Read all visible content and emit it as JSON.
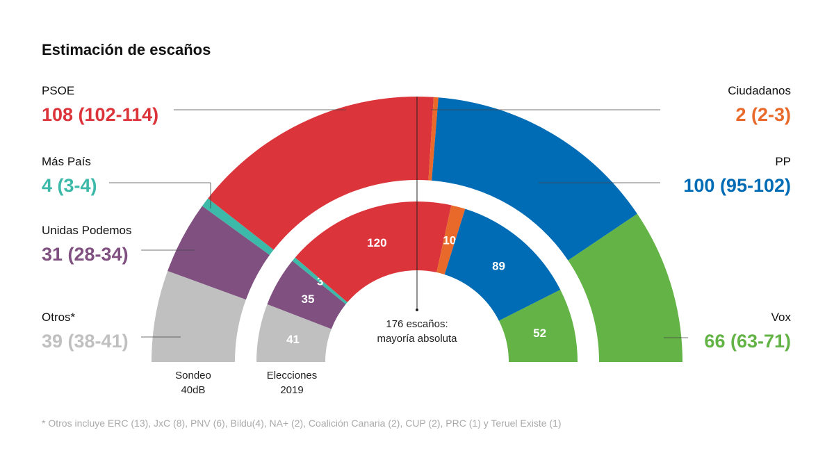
{
  "chart_data": {
    "type": "pie",
    "subtype": "parliament-hemicycle",
    "title": "Estimación de escaños",
    "majority_label": [
      "176 escaños:",
      "mayoría absoluta"
    ],
    "majority_seats": 176,
    "total_seats": 350,
    "rings": [
      {
        "name": "Sondeo 40dB",
        "label_lines": [
          "Sondeo",
          "40dB"
        ],
        "ring": "outer"
      },
      {
        "name": "Elecciones 2019",
        "label_lines": [
          "Elecciones",
          "2019"
        ],
        "ring": "inner"
      }
    ],
    "parties": [
      {
        "name": "Otros*",
        "color": "#c0c0c0",
        "sondeo": 39,
        "range": "38-41",
        "label": "39 (38-41)",
        "elecciones_2019": 41
      },
      {
        "name": "Unidas Podemos",
        "color": "#7f5080",
        "sondeo": 31,
        "range": "28-34",
        "label": "31 (28-34)",
        "elecciones_2019": 35
      },
      {
        "name": "Más País",
        "color": "#3cb9a9",
        "sondeo": 4,
        "range": "3-4",
        "label": "4 (3-4)",
        "elecciones_2019": 3
      },
      {
        "name": "PSOE",
        "color": "#dc343b",
        "sondeo": 108,
        "range": "102-114",
        "label": "108 (102-114)",
        "elecciones_2019": 120
      },
      {
        "name": "Ciudadanos",
        "color": "#e8692a",
        "sondeo": 2,
        "range": "2-3",
        "label": "2 (2-3)",
        "elecciones_2019": 10
      },
      {
        "name": "PP",
        "color": "#006cb5",
        "sondeo": 100,
        "range": "95-102",
        "label": "100 (95-102)",
        "elecciones_2019": 89
      },
      {
        "name": "Vox",
        "color": "#63b346",
        "sondeo": 66,
        "range": "63-71",
        "label": "66 (63-71)",
        "elecciones_2019": 52
      }
    ],
    "footnote": "* Otros incluye ERC (13), JxC (8), PNV (6), Bildu(4), NA+ (2), Coalición Canaria (2), CUP (2), PRC (1) y Teruel Existe (1)"
  }
}
